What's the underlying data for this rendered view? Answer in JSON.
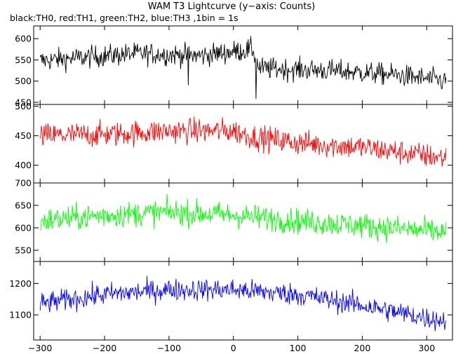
{
  "chart_data": {
    "type": "line",
    "title": "WAM T3 Lightcurve (y−axis: Counts)",
    "subtitle": "black:TH0, red:TH1, green:TH2, blue:TH3 ,1bin = 1s",
    "xlim": [
      -310,
      340
    ],
    "x_ticks": [
      -300,
      -200,
      -100,
      0,
      100,
      200,
      300
    ],
    "x_tick_labels": [
      "−300",
      "−200",
      "−100",
      "0",
      "100",
      "200",
      "300"
    ],
    "grid": false,
    "panels": [
      {
        "series": "TH0",
        "color": "#000000",
        "ylim": [
          445,
          630
        ],
        "y_ticks": [
          450,
          500,
          550,
          600
        ],
        "y_tick_labels": [
          "450",
          "500",
          "550",
          "600"
        ],
        "trend": [
          [
            -300,
            548
          ],
          [
            -150,
            565
          ],
          [
            -50,
            560
          ],
          [
            30,
            575
          ],
          [
            40,
            530
          ],
          [
            150,
            525
          ],
          [
            250,
            515
          ],
          [
            330,
            500
          ]
        ],
        "noise": 22,
        "dips": [
          [
            -70,
            490
          ],
          [
            35,
            458
          ]
        ]
      },
      {
        "series": "TH1",
        "color": "#ff0000",
        "ylim": [
          370,
          503
        ],
        "y_ticks": [
          400,
          450,
          500
        ],
        "y_tick_labels": [
          "400",
          "450",
          "500"
        ],
        "trend": [
          [
            -300,
            450
          ],
          [
            -200,
            452
          ],
          [
            -100,
            458
          ],
          [
            0,
            458
          ],
          [
            30,
            448
          ],
          [
            100,
            438
          ],
          [
            200,
            430
          ],
          [
            330,
            412
          ]
        ],
        "noise": 18,
        "dips": []
      },
      {
        "series": "TH2",
        "color": "#00ff00",
        "ylim": [
          525,
          700
        ],
        "y_ticks": [
          550,
          600,
          650,
          700
        ],
        "y_tick_labels": [
          "550",
          "600",
          "650",
          "700"
        ],
        "trend": [
          [
            -300,
            615
          ],
          [
            -200,
            628
          ],
          [
            -100,
            635
          ],
          [
            0,
            628
          ],
          [
            100,
            615
          ],
          [
            200,
            605
          ],
          [
            330,
            590
          ]
        ],
        "noise": 24,
        "dips": []
      },
      {
        "series": "TH3",
        "color": "#0000ff",
        "ylim": [
          1020,
          1270
        ],
        "y_ticks": [
          1100,
          1200
        ],
        "y_tick_labels": [
          "1100",
          "1200"
        ],
        "trend": [
          [
            -300,
            1135
          ],
          [
            -200,
            1165
          ],
          [
            -100,
            1180
          ],
          [
            0,
            1180
          ],
          [
            100,
            1165
          ],
          [
            200,
            1130
          ],
          [
            300,
            1090
          ],
          [
            330,
            1080
          ]
        ],
        "noise": 30,
        "dips": []
      }
    ]
  }
}
